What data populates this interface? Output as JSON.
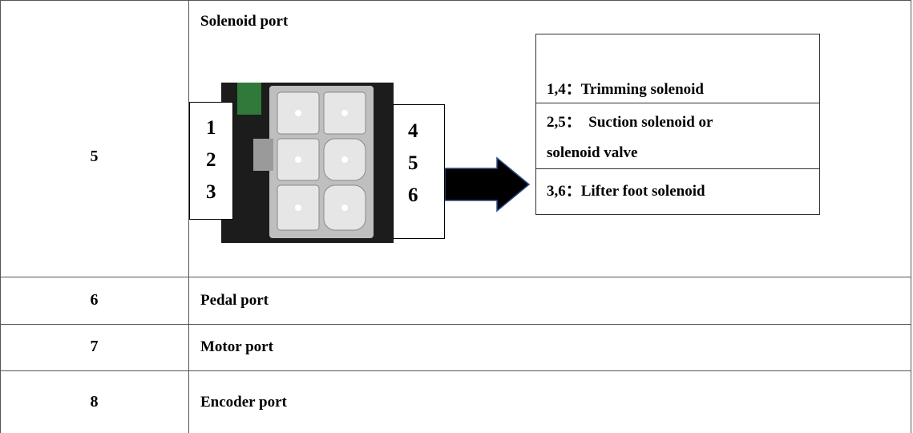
{
  "table": {
    "rows": [
      {
        "number": "5",
        "port": "Solenoid port",
        "left_pins": [
          "1",
          "2",
          "3"
        ],
        "right_pins": [
          "4",
          "5",
          "6"
        ],
        "legend": [
          "1,4：Trimming solenoid",
          "2,5：  Suction solenoid or",
          "solenoid valve",
          "3,6：Lifter foot solenoid"
        ]
      },
      {
        "number": "6",
        "port": "Pedal port"
      },
      {
        "number": "7",
        "port": "Motor port"
      },
      {
        "number": "8",
        "port": "Encoder port"
      }
    ]
  }
}
